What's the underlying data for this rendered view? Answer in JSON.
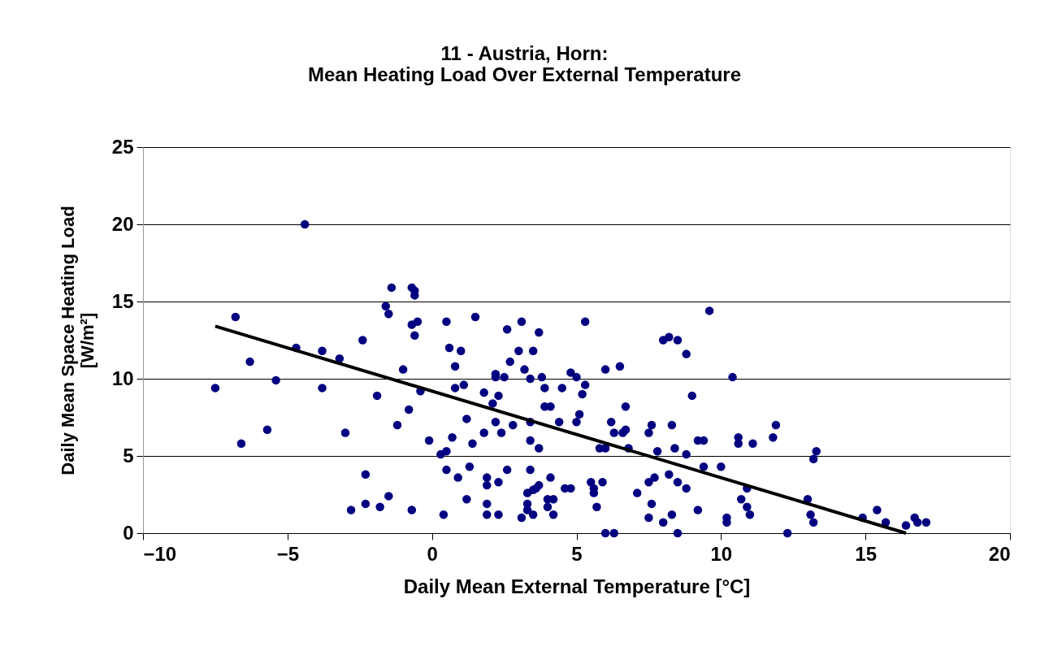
{
  "chart_data": {
    "type": "scatter",
    "title": "11 - Austria, Horn:\nMean Heating Load Over External Temperature",
    "xlabel": "Daily Mean External Temperature [°C]",
    "ylabel": "Daily Mean Space Heating Load\n[W/m²]",
    "xlim": [
      -10,
      20
    ],
    "xticks": [
      -10,
      -5,
      0,
      5,
      10,
      15,
      20
    ],
    "ylim": [
      0,
      25
    ],
    "yticks": [
      0,
      5,
      10,
      15,
      20,
      25
    ],
    "grid": "y",
    "series": [
      {
        "marker": "circle",
        "color": "#000080",
        "x": [
          -7.5,
          -6.8,
          -6.6,
          -6.3,
          -5.7,
          -5.4,
          -4.7,
          -4.4,
          -3.8,
          -3.8,
          -3.2,
          -3.0,
          -2.8,
          -2.4,
          -2.3,
          -2.3,
          -1.9,
          -1.8,
          -1.6,
          -1.5,
          -1.5,
          -1.4,
          -1.2,
          -1.0,
          -0.8,
          -0.7,
          -0.7,
          -0.6,
          -0.6,
          -0.5,
          -0.6,
          -0.7,
          -0.4,
          -0.1,
          0.3,
          0.4,
          0.5,
          0.5,
          0.5,
          0.6,
          0.7,
          0.8,
          0.8,
          0.9,
          1.0,
          1.1,
          1.2,
          1.2,
          1.3,
          1.4,
          1.5,
          1.8,
          1.8,
          1.9,
          1.9,
          1.9,
          1.9,
          2.1,
          2.2,
          2.2,
          2.3,
          2.2,
          2.3,
          2.3,
          2.4,
          2.5,
          2.6,
          2.6,
          2.7,
          2.8,
          3.0,
          3.1,
          3.1,
          3.2,
          3.3,
          3.3,
          3.3,
          3.4,
          3.4,
          3.4,
          3.4,
          3.5,
          3.5,
          3.5,
          3.6,
          3.7,
          3.7,
          3.7,
          3.8,
          3.9,
          3.9,
          4.0,
          4.0,
          4.1,
          4.1,
          4.2,
          4.2,
          4.4,
          4.5,
          4.6,
          4.8,
          4.8,
          5.0,
          5.0,
          5.1,
          5.2,
          5.3,
          5.3,
          5.5,
          5.6,
          5.7,
          5.6,
          5.8,
          5.9,
          6.0,
          6.0,
          6.0,
          6.2,
          6.3,
          6.3,
          6.5,
          6.6,
          6.7,
          6.7,
          6.8,
          7.1,
          7.5,
          7.5,
          7.5,
          7.6,
          7.6,
          7.7,
          7.8,
          8.0,
          8.0,
          8.2,
          8.2,
          8.3,
          8.3,
          8.4,
          8.5,
          8.5,
          8.5,
          8.8,
          8.8,
          8.8,
          9.0,
          9.2,
          9.2,
          9.4,
          9.4,
          9.6,
          10.0,
          10.2,
          10.2,
          10.4,
          10.6,
          10.6,
          10.7,
          10.9,
          10.9,
          11.0,
          11.1,
          11.8,
          11.9,
          12.3,
          13.0,
          13.1,
          13.2,
          13.2,
          13.3,
          14.9,
          15.4,
          15.7,
          16.4,
          16.7,
          16.8,
          17.1
        ],
        "values": [
          9.4,
          14.0,
          5.8,
          11.1,
          6.7,
          9.9,
          12.0,
          20.0,
          11.8,
          9.4,
          11.3,
          6.5,
          1.5,
          12.5,
          3.8,
          1.9,
          8.9,
          1.7,
          14.7,
          2.4,
          14.2,
          15.9,
          7.0,
          10.6,
          8.0,
          13.5,
          15.9,
          15.4,
          15.7,
          13.7,
          12.8,
          1.5,
          9.2,
          6.0,
          5.1,
          1.2,
          13.7,
          4.1,
          5.3,
          12.0,
          6.2,
          10.8,
          9.4,
          3.6,
          11.8,
          9.6,
          7.4,
          2.2,
          4.3,
          5.8,
          14.0,
          9.1,
          6.5,
          3.6,
          3.1,
          1.9,
          1.2,
          8.4,
          10.1,
          10.3,
          8.9,
          7.2,
          3.3,
          1.2,
          6.5,
          10.1,
          13.2,
          4.1,
          11.1,
          7.0,
          11.8,
          13.7,
          1.0,
          10.6,
          2.6,
          1.9,
          1.5,
          10.0,
          7.2,
          6.0,
          4.1,
          11.8,
          2.8,
          1.2,
          2.9,
          13.0,
          5.5,
          3.1,
          10.1,
          9.4,
          8.2,
          2.2,
          1.7,
          8.2,
          3.6,
          2.2,
          1.2,
          7.2,
          9.4,
          2.9,
          2.9,
          10.4,
          10.1,
          7.2,
          7.7,
          9.0,
          13.7,
          9.6,
          3.3,
          2.9,
          1.7,
          2.6,
          5.5,
          3.3,
          10.6,
          5.5,
          0,
          7.2,
          0,
          6.5,
          10.8,
          6.5,
          6.7,
          8.2,
          5.5,
          2.6,
          6.5,
          3.3,
          1.0,
          7.0,
          1.9,
          3.6,
          5.3,
          12.5,
          0.7,
          12.7,
          3.8,
          1.2,
          7.0,
          5.5,
          12.5,
          0,
          3.3,
          11.6,
          2.9,
          5.1,
          8.9,
          6.0,
          1.5,
          6.0,
          4.3,
          14.4,
          4.3,
          0.7,
          1.0,
          10.1,
          6.2,
          5.8,
          2.2,
          2.9,
          1.7,
          1.2,
          5.8,
          6.2,
          7.0,
          0,
          2.2,
          1.2,
          0.7,
          4.8,
          5.3,
          1.0,
          1.5,
          0.7,
          0.5,
          1.0,
          0.7,
          0.7
        ]
      },
      {
        "type": "line",
        "marker": "none",
        "color": "#000000",
        "x": [
          -7.5,
          16.4
        ],
        "values": [
          13.4,
          0
        ]
      }
    ]
  }
}
